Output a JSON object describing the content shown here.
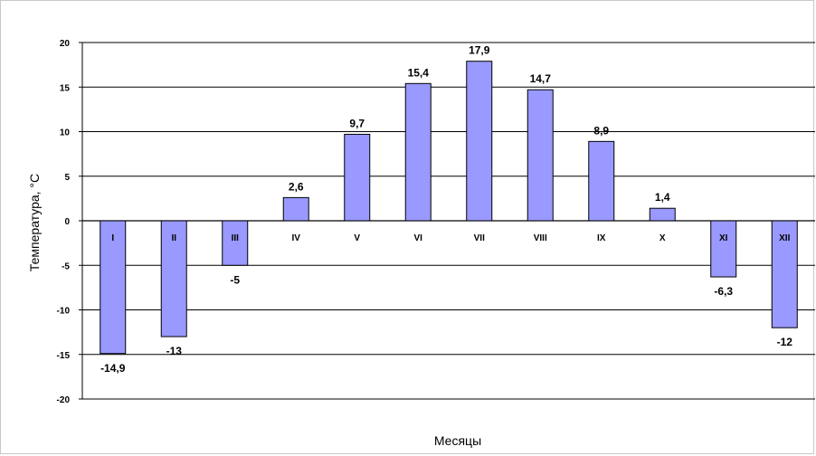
{
  "chart_data": {
    "type": "bar",
    "title": "",
    "xlabel": "Месяцы",
    "ylabel": "Температура, °С",
    "ylim": [
      -20,
      20
    ],
    "yticks": [
      20,
      15,
      10,
      5,
      0,
      -5,
      -10,
      -15,
      -20
    ],
    "grid": true,
    "categories": [
      "I",
      "II",
      "III",
      "IV",
      "V",
      "VI",
      "VII",
      "VIII",
      "IX",
      "X",
      "XI",
      "XII"
    ],
    "values": [
      -14.9,
      -13,
      -5,
      2.6,
      9.7,
      15.4,
      17.9,
      14.7,
      8.9,
      1.4,
      -6.3,
      -12
    ],
    "value_labels": [
      "-14,9",
      "-13",
      "-5",
      "2,6",
      "9,7",
      "15,4",
      "17,9",
      "14,7",
      "8,9",
      "1,4",
      "-6,3",
      "-12"
    ],
    "colors": {
      "bar_fill": "#9999ff",
      "bar_stroke": "#000000",
      "grid": "#000000"
    }
  }
}
